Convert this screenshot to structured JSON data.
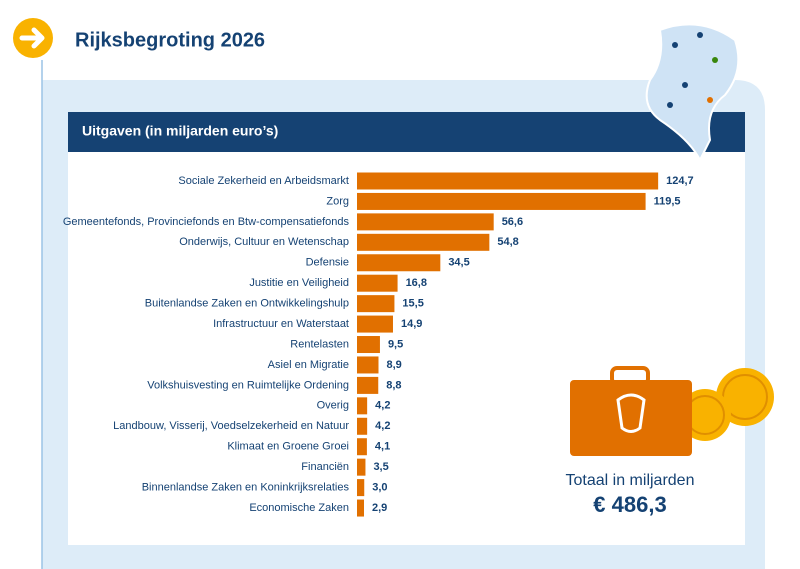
{
  "chart_data": {
    "type": "hbar",
    "title": "Rijksbegroting 2026",
    "subtitle": "Uitgaven (in miljarden euro’s)",
    "categories": [
      "Sociale Zekerheid en Arbeidsmarkt",
      "Zorg",
      "Gemeentefonds, Provinciefonds en Btw-compensatiefonds",
      "Onderwijs, Cultuur en Wetenschap",
      "Defensie",
      "Justitie en Veiligheid",
      "Buitenlandse Zaken en Ontwikkelingshulp",
      "Infrastructuur en Waterstaat",
      "Rentelasten",
      "Asiel en Migratie",
      "Volkshuisvesting en Ruimtelijke Ordening",
      "Overig",
      "Landbouw, Visserij, Voedselzekerheid en Natuur",
      "Klimaat en Groene Groei",
      "Financiën",
      "Binnenlandse Zaken en Koninkrijksrelaties",
      "Economische Zaken"
    ],
    "values": [
      124.7,
      119.5,
      56.6,
      54.8,
      34.5,
      16.8,
      15.5,
      14.9,
      9.5,
      8.9,
      8.8,
      4.2,
      4.2,
      4.1,
      3.5,
      3.0,
      2.9
    ],
    "value_labels": [
      "124,7",
      "119,5",
      "56,6",
      "54,8",
      "34,5",
      "16,8",
      "15,5",
      "14,9",
      "9,5",
      "8,9",
      "8,8",
      "4,2",
      "4,2",
      "4,1",
      "3,5",
      "3,0",
      "2,9"
    ],
    "color": "#e17000",
    "total_title": "Totaal in miljarden",
    "total_label": "€ 486,3"
  }
}
